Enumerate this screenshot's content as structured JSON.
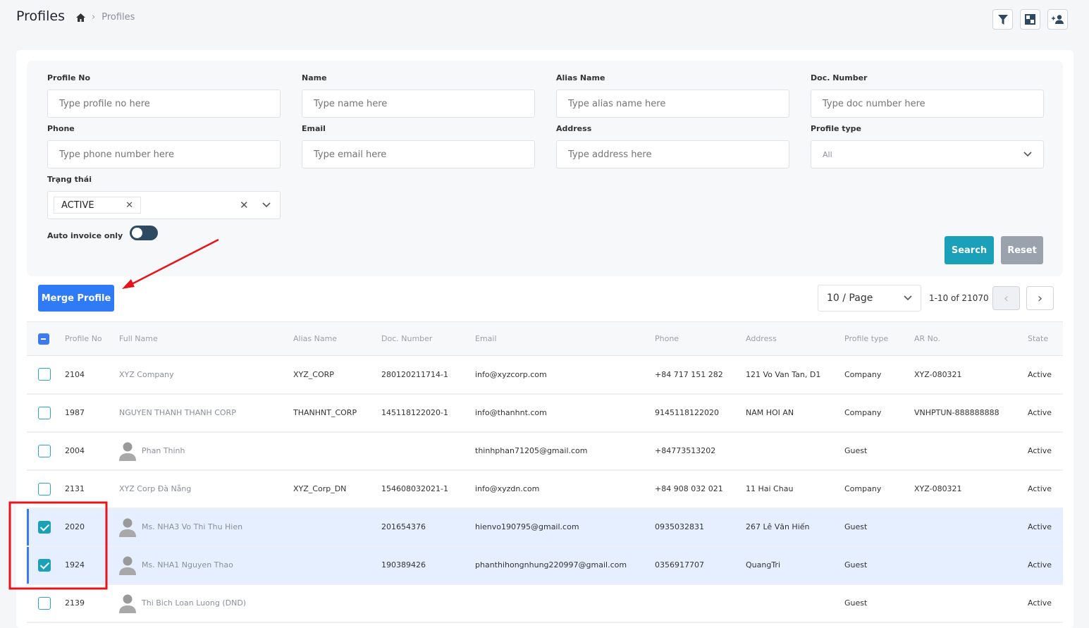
{
  "header": {
    "title": "Profiles",
    "breadcrumb": [
      "Profiles"
    ],
    "actions": [
      "filter-icon",
      "layout-icon",
      "add-user-icon"
    ]
  },
  "filters": {
    "profile_no": {
      "label": "Profile No",
      "placeholder": "Type profile no here"
    },
    "name": {
      "label": "Name",
      "placeholder": "Type name here"
    },
    "alias": {
      "label": "Alias Name",
      "placeholder": "Type alias name here"
    },
    "doc": {
      "label": "Doc. Number",
      "placeholder": "Type doc number here"
    },
    "phone": {
      "label": "Phone",
      "placeholder": "Type phone number here"
    },
    "email": {
      "label": "Email",
      "placeholder": "Type email here"
    },
    "address": {
      "label": "Address",
      "placeholder": "Type address here"
    },
    "profile_type": {
      "label": "Profile type",
      "value": "All"
    },
    "status": {
      "label": "Trạng thái",
      "tag": "ACTIVE"
    },
    "auto_invoice": {
      "label": "Auto invoice only",
      "on": false
    },
    "search": "Search",
    "reset": "Reset"
  },
  "toolbar": {
    "merge": "Merge Profile",
    "page_size": "10 / Page",
    "range": "1-10 of 21070"
  },
  "colors": {
    "primary": "#2f7bf5",
    "teal": "#1aa0b8",
    "reset": "#9aa3ad",
    "selected_row": "#e6efff",
    "annotation": "#e8141b"
  },
  "table": {
    "columns": [
      "Profile No",
      "Full Name",
      "Alias Name",
      "Doc. Number",
      "Email",
      "Phone",
      "Address",
      "Profile type",
      "AR No.",
      "State"
    ],
    "rows": [
      {
        "checked": false,
        "avatar": false,
        "no": "2104",
        "name": "XYZ Company",
        "alias": "XYZ_CORP",
        "doc": "280120211714-1",
        "email": "info@xyzcorp.com",
        "phone": "+84 717 151 282",
        "address": "121 Vo Van Tan, D1",
        "type": "Company",
        "ar": "XYZ-080321",
        "state": "Active"
      },
      {
        "checked": false,
        "avatar": false,
        "no": "1987",
        "name": "NGUYEN THANH THANH CORP",
        "alias": "THANHNT_CORP",
        "doc": "145118122020-1",
        "email": "info@thanhnt.com",
        "phone": "9145118122020",
        "address": "NAM HOI AN",
        "type": "Company",
        "ar": "VNHPTUN-888888888",
        "state": "Active"
      },
      {
        "checked": false,
        "avatar": true,
        "no": "2004",
        "name": "Phan Thinh",
        "alias": "",
        "doc": "",
        "email": "thinhphan71205@gmail.com",
        "phone": "+84773513202",
        "address": "",
        "type": "Guest",
        "ar": "",
        "state": "Active"
      },
      {
        "checked": false,
        "avatar": false,
        "no": "2131",
        "name": "XYZ Corp Đà Nẵng",
        "alias": "XYZ_Corp_DN",
        "doc": "154608032021-1",
        "email": "info@xyzdn.com",
        "phone": "+84 908 032 021",
        "address": "11 Hai Chau",
        "type": "Company",
        "ar": "XYZ-080321",
        "state": "Active"
      },
      {
        "checked": true,
        "avatar": true,
        "no": "2020",
        "name": "Ms. NHA3 Vo Thi Thu Hien",
        "alias": "",
        "doc": "201654376",
        "email": "hienvo190795@gmail.com",
        "phone": "0935032831",
        "address": "267 Lê Văn Hiến",
        "type": "Guest",
        "ar": "",
        "state": "Active"
      },
      {
        "checked": true,
        "avatar": true,
        "no": "1924",
        "name": "Ms. NHA1 Nguyen Thao",
        "alias": "",
        "doc": "190389426",
        "email": "phanthihongnhung220997@gmail.com",
        "phone": "0356917707",
        "address": "QuangTri",
        "type": "Guest",
        "ar": "",
        "state": "Active"
      },
      {
        "checked": false,
        "avatar": true,
        "no": "2139",
        "name": "Thi Bich Loan Luong (DND)",
        "alias": "",
        "doc": "",
        "email": "",
        "phone": "",
        "address": "",
        "type": "Guest",
        "ar": "",
        "state": "Active"
      }
    ]
  }
}
